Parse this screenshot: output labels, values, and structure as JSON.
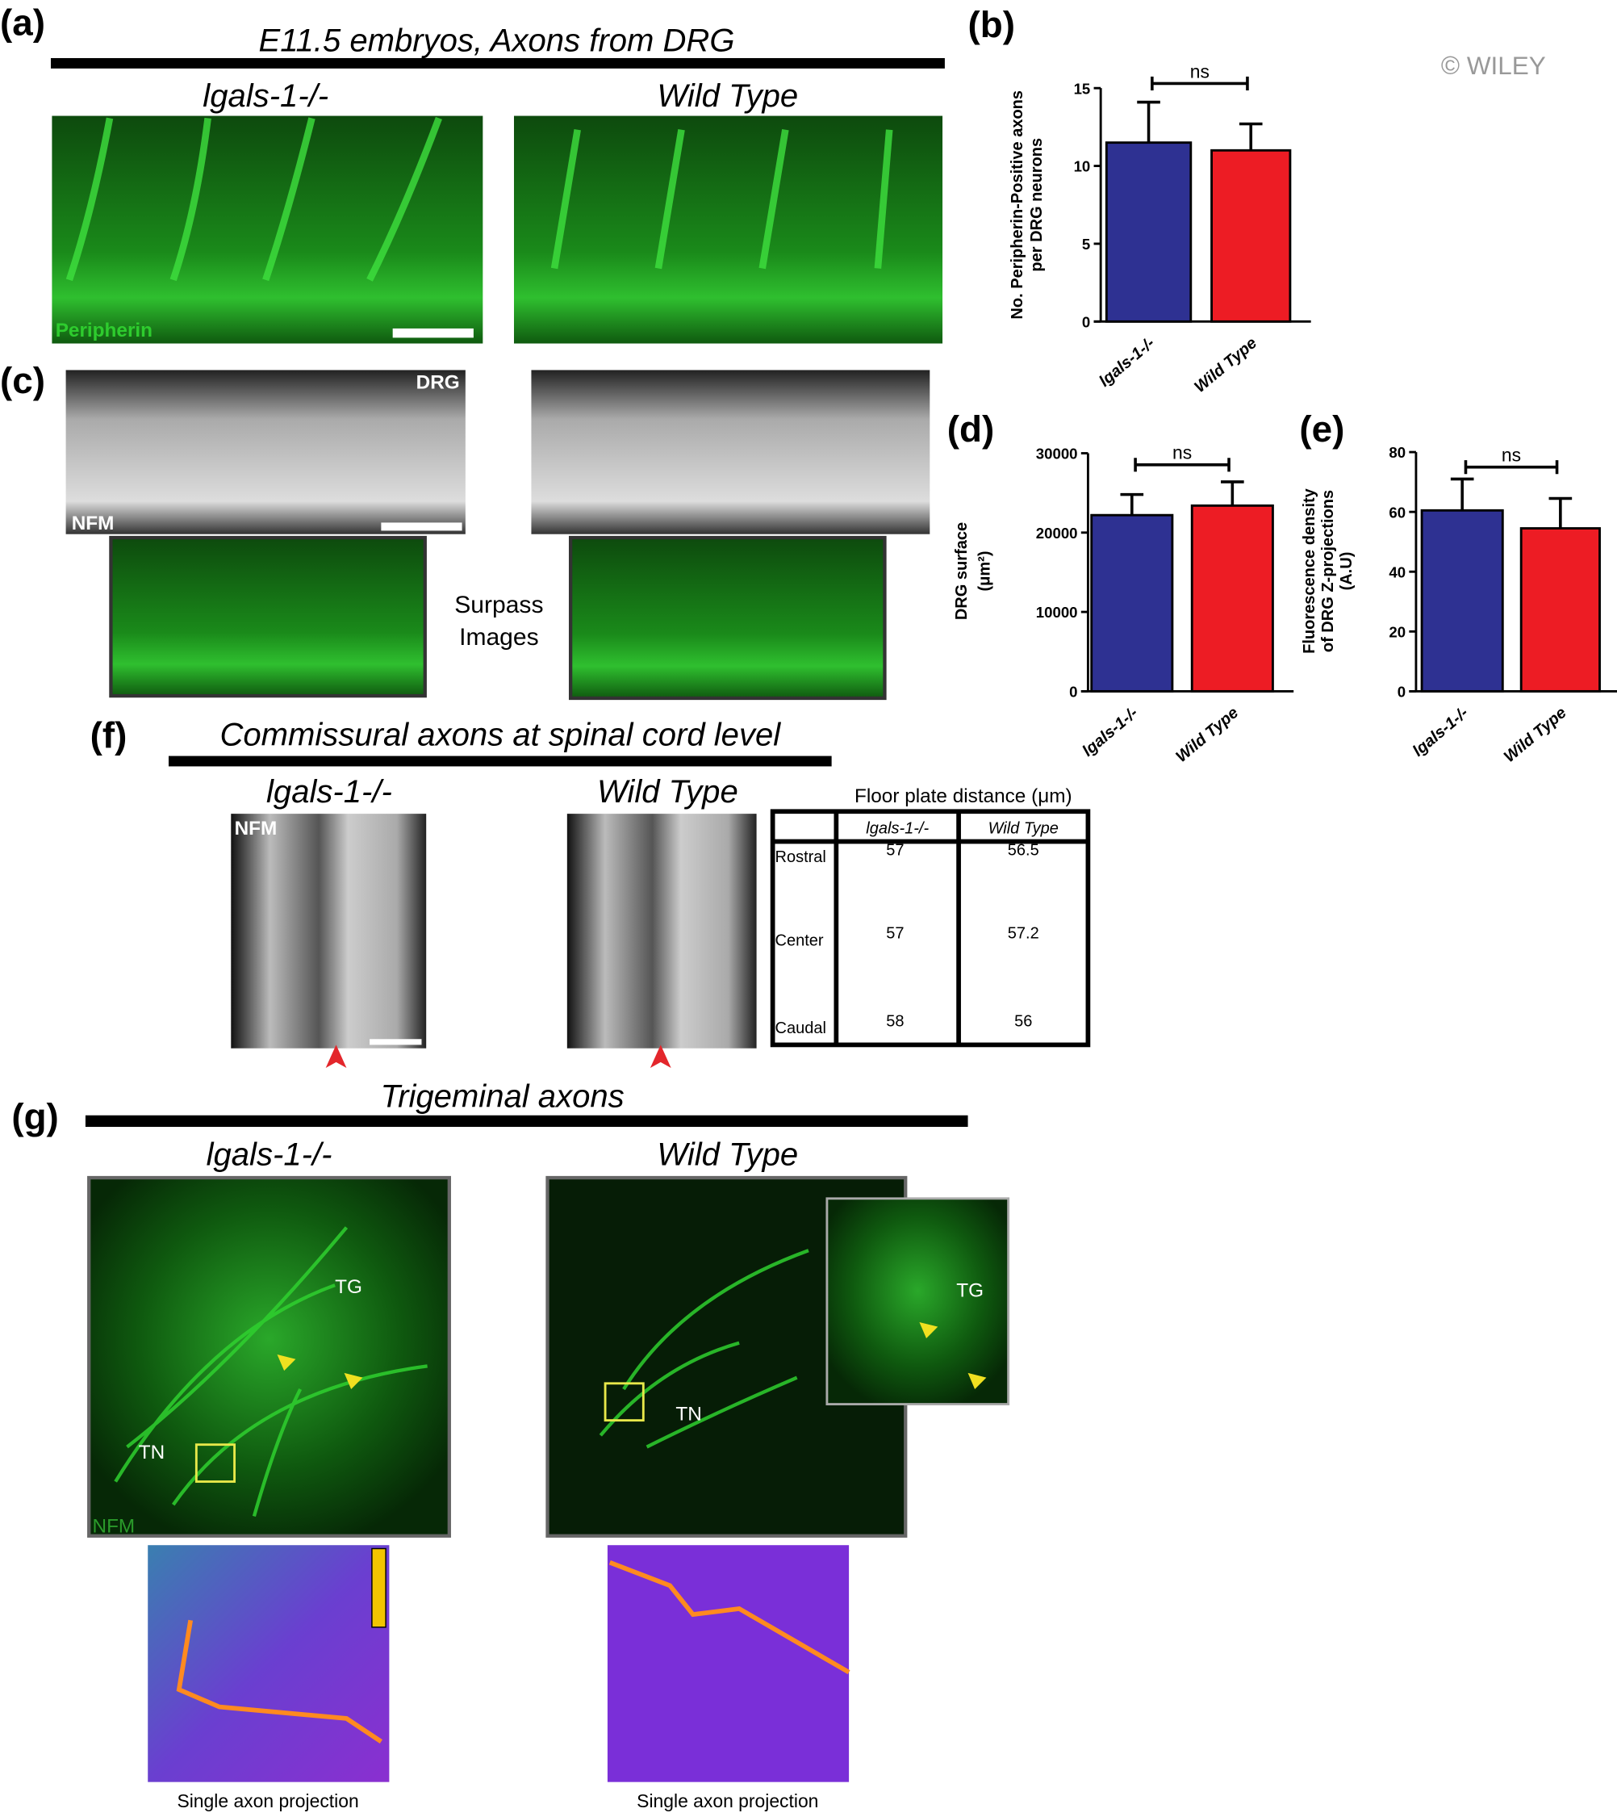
{
  "panel_labels": [
    "(a)",
    "(b)",
    "(c)",
    "(d)",
    "(e)",
    "(f)",
    "(g)"
  ],
  "watermark": "© WILEY",
  "panel_a": {
    "title": "E11.5 embryos, Axons from DRG",
    "left": "lgals-1-/-",
    "right": "Wild Type",
    "stain": "Peripherin"
  },
  "panel_c": {
    "labels": [
      "DRG",
      "NFM"
    ],
    "caption": [
      "Surpass",
      "Images"
    ]
  },
  "panel_f": {
    "title": "Commissural axons at spinal cord level",
    "left": "lgals-1-/-",
    "right": "Wild Type",
    "stain": "NFM"
  },
  "table": {
    "title": "Floor plate distance (μm)",
    "header": [
      "lgals-1-/-",
      "Wild Type"
    ],
    "rows": [
      [
        "Rostral",
        57,
        56.5
      ],
      [
        "Center",
        57,
        57.2
      ],
      [
        "Caudal",
        58,
        56
      ]
    ]
  },
  "panel_g": {
    "title": "Trigeminal axons",
    "left": "lgals-1-/-",
    "right": "Wild Type",
    "labels": [
      "TG",
      "TN",
      "TG",
      "TN"
    ],
    "stain": "NFM",
    "captions": [
      "Single axon projection",
      "Single axon projection"
    ]
  },
  "chart_data": [
    {
      "type": "bar",
      "categories": [
        "lgals-1-/-",
        "Wild Type"
      ],
      "values": [
        11.5,
        11.0
      ],
      "errors": [
        2.6,
        1.7
      ],
      "colors": [
        "#2e3192",
        "#ed1c24"
      ],
      "ylim": [
        0,
        15
      ],
      "yticks": [
        0,
        5,
        10,
        15
      ],
      "y_label": [
        "No. Peripherin-Positive axons",
        "per DRG neurons"
      ],
      "annotation": "ns"
    },
    {
      "type": "bar",
      "categories": [
        "lgals-1-/-",
        "Wild Type"
      ],
      "values": [
        22200,
        23400
      ],
      "errors": [
        2600,
        3000
      ],
      "colors": [
        "#2e3192",
        "#ed1c24"
      ],
      "ylim": [
        0,
        30000
      ],
      "yticks": [
        0,
        10000,
        20000,
        30000
      ],
      "y_label": [
        "DRG surface",
        "(μm²)"
      ],
      "annotation": "ns"
    },
    {
      "type": "bar",
      "categories": [
        "lgals-1-/-",
        "Wild Type"
      ],
      "values": [
        60.5,
        54.5
      ],
      "errors": [
        10.5,
        10
      ],
      "colors": [
        "#2e3192",
        "#ed1c24"
      ],
      "ylim": [
        0,
        80
      ],
      "yticks": [
        0,
        20,
        40,
        60,
        80
      ],
      "y_label": [
        "Fluorescence density",
        "of DRG Z-projections",
        "(A.U)"
      ],
      "annotation": "ns"
    }
  ]
}
